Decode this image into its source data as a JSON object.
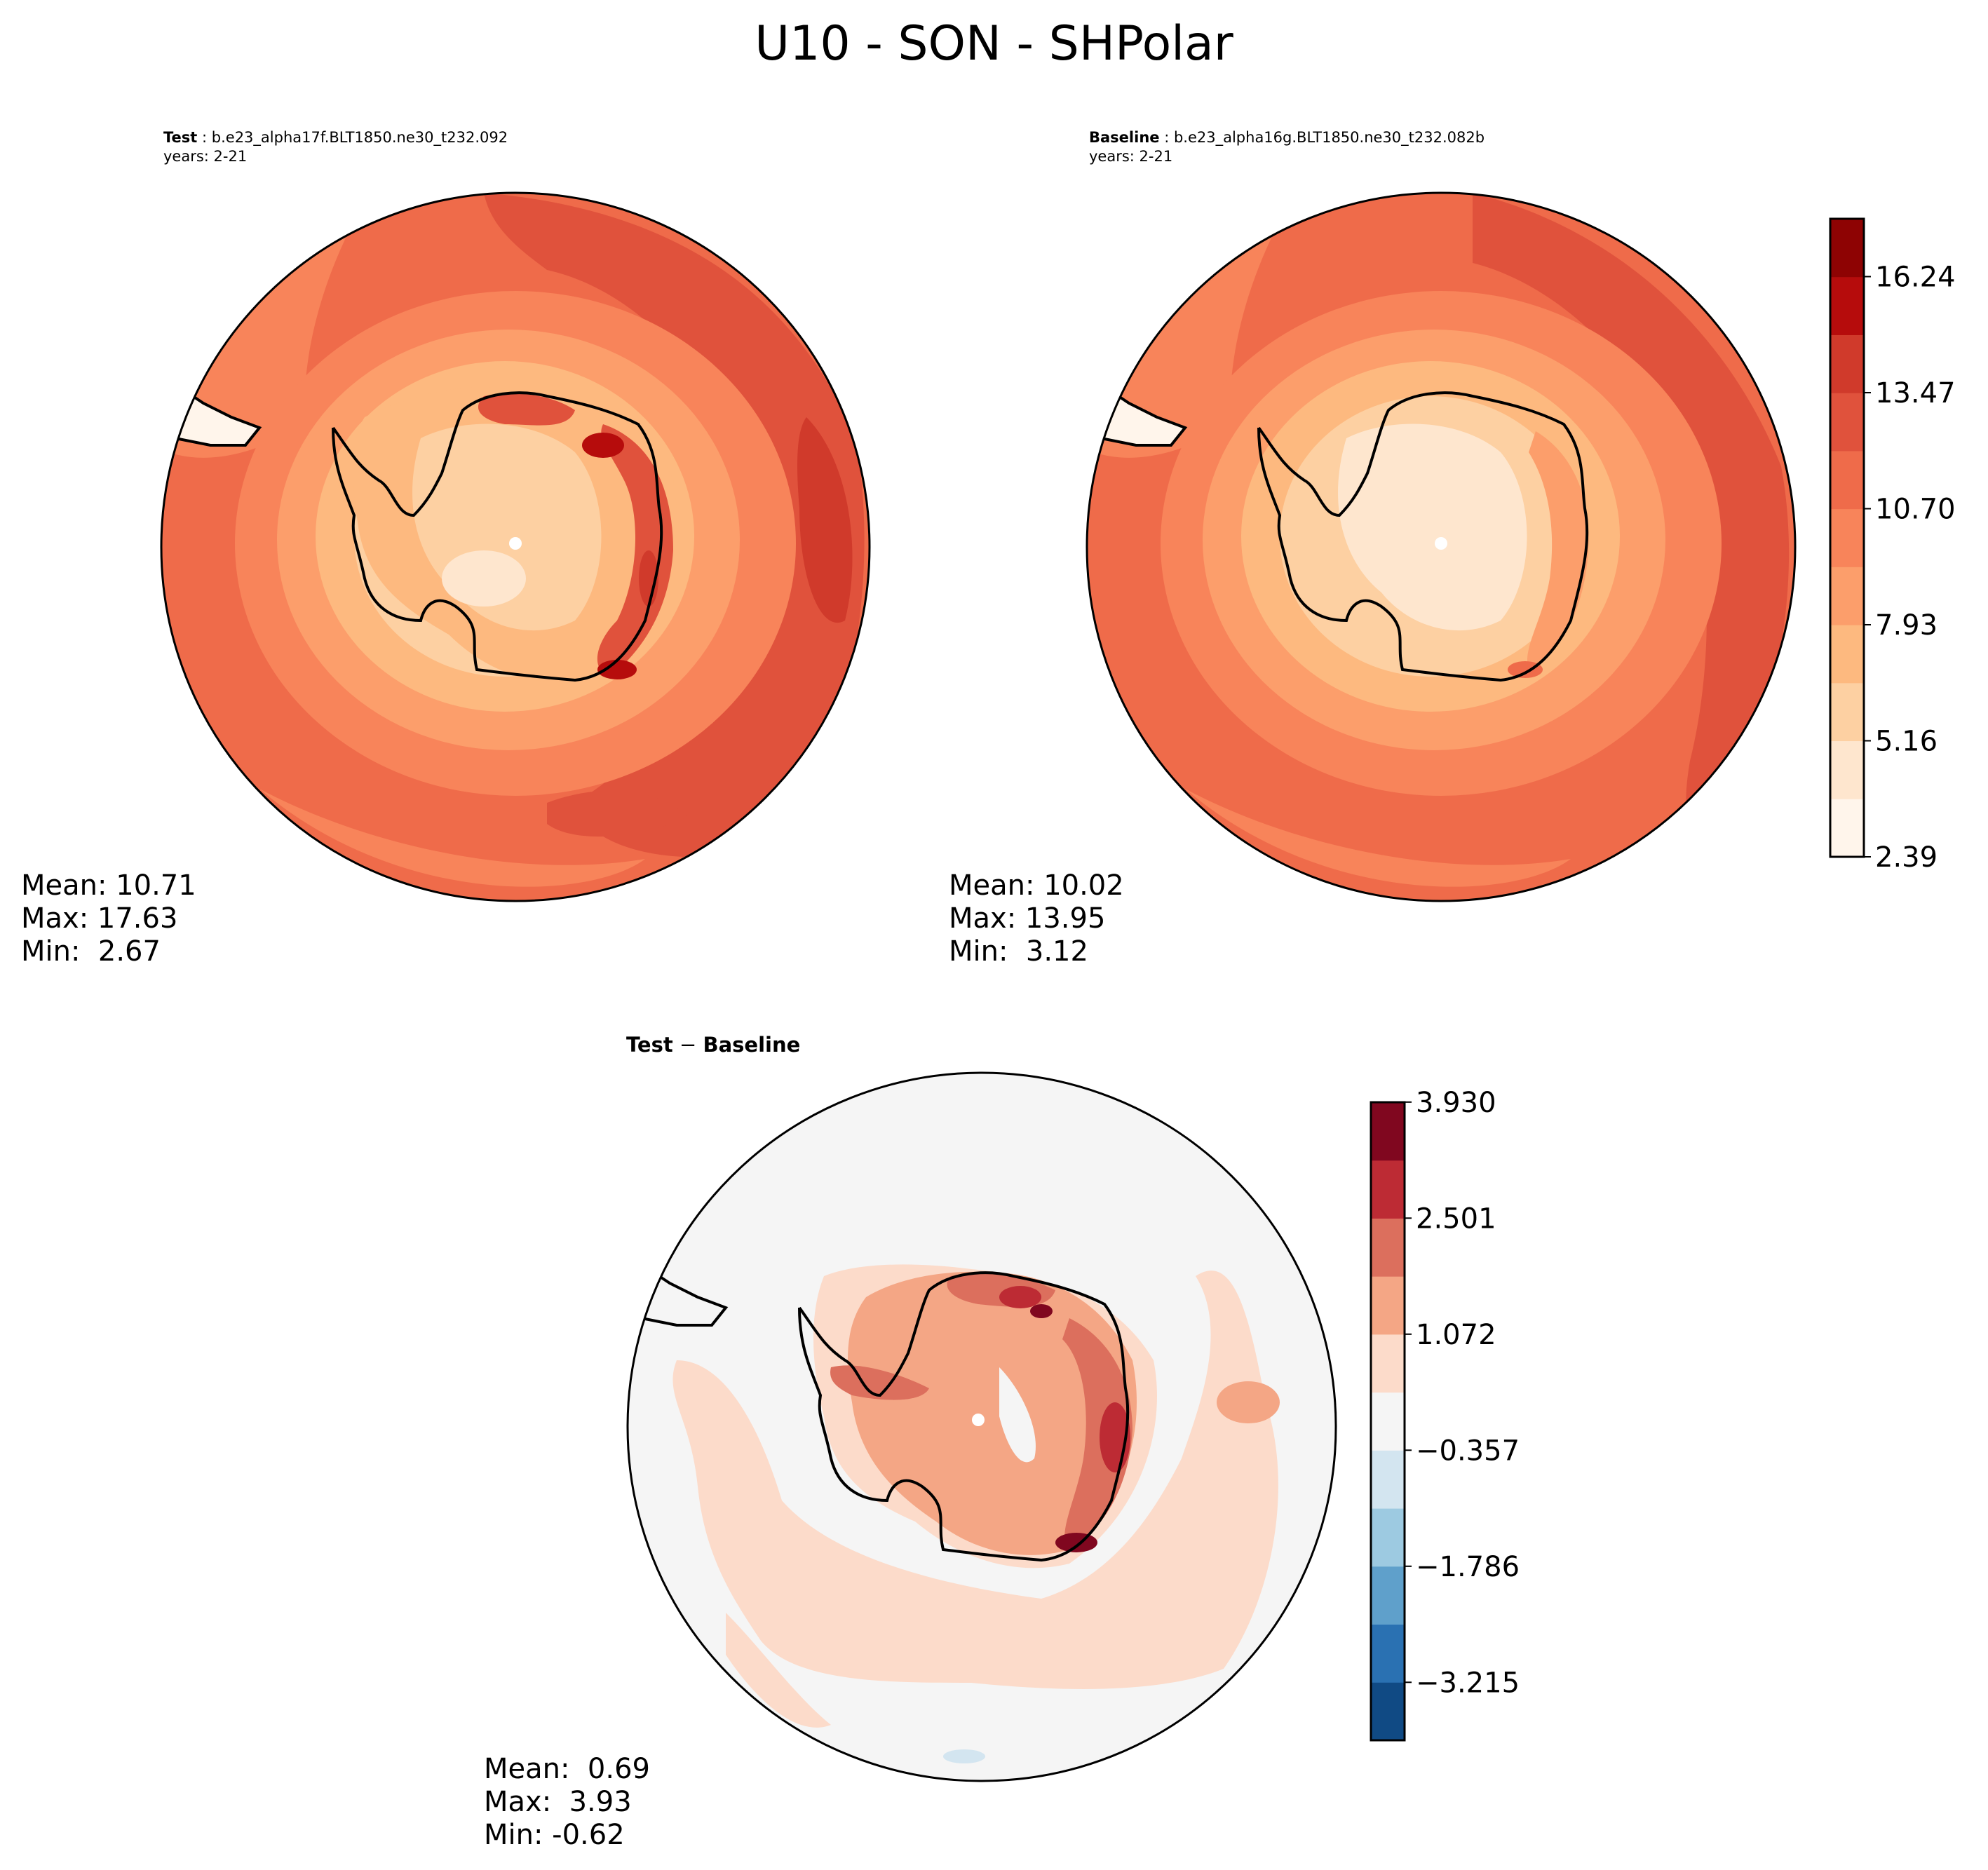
{
  "figure_title": "U10 - SON - SHPolar",
  "panels": {
    "test": {
      "label": "Test",
      "case": "b.e23_alpha17f.BLT1850.ne30_t232.092",
      "years": "years: 2-21",
      "mean_label": "Mean:",
      "mean": "10.71",
      "max_label": "Max:",
      "max": "17.63",
      "min_label": "Min:",
      "min": "2.67"
    },
    "baseline": {
      "label": "Baseline",
      "case": "b.e23_alpha16g.BLT1850.ne30_t232.082b",
      "years": "years: 2-21",
      "mean_label": "Mean:",
      "mean": "10.02",
      "max_label": "Max:",
      "max": "13.95",
      "min_label": "Min:",
      "min": "3.12"
    },
    "difference": {
      "title_left": "Test",
      "title_sep": " − ",
      "title_right": "Baseline",
      "mean_label": "Mean:",
      "mean": "0.69",
      "max_label": "Max:",
      "max": "3.93",
      "min_label": "Min:",
      "min": "-0.62"
    }
  },
  "colorbars": {
    "field": {
      "colormap": "Reds",
      "tick_labels": [
        "2.39",
        "5.16",
        "7.93",
        "10.70",
        "13.47",
        "16.24"
      ],
      "colors": [
        "#fff5eb",
        "#fee6ce",
        "#fdd0a2",
        "#fdb97f",
        "#fc9e6b",
        "#f8845a",
        "#ef6b4a",
        "#e0523c",
        "#d03a2b",
        "#b60c0c",
        "#8e0303"
      ]
    },
    "diff": {
      "colormap": "RdBu_r",
      "tick_labels": [
        "−3.215",
        "−1.786",
        "−0.357",
        "1.072",
        "2.501",
        "3.930"
      ],
      "colors": [
        "#104a84",
        "#2a71b2",
        "#5fa0cb",
        "#9dcae1",
        "#d3e5f0",
        "#f5f5f5",
        "#fcdbca",
        "#f4a685",
        "#dc6f5d",
        "#bd2b34",
        "#80071f"
      ]
    }
  }
}
